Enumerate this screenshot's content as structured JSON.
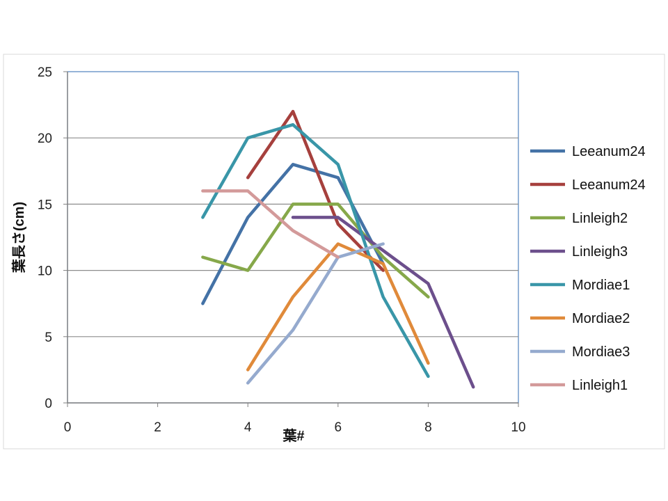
{
  "chart_data": {
    "type": "line",
    "title": "",
    "xlabel": "葉#",
    "ylabel": "葉長さ(cm)",
    "xlim": [
      0,
      10
    ],
    "ylim": [
      0,
      25
    ],
    "xticks": [
      "0",
      "2",
      "4",
      "6",
      "8",
      "10"
    ],
    "yticks": [
      "0",
      "5",
      "10",
      "15",
      "20",
      "25"
    ],
    "grid": "horizontal",
    "legend": "right",
    "series": [
      {
        "name": "Leeanum24",
        "color": "#4472a6",
        "x": [
          3,
          4,
          5,
          6,
          7
        ],
        "y": [
          7.5,
          14,
          18,
          17,
          10.5
        ]
      },
      {
        "name": "Leeanum24",
        "color": "#a6403d",
        "x": [
          4,
          5,
          6,
          7
        ],
        "y": [
          17,
          22,
          13.5,
          10
        ]
      },
      {
        "name": "Linleigh2",
        "color": "#86a84a",
        "x": [
          3,
          4,
          5,
          6,
          7,
          8
        ],
        "y": [
          11,
          10,
          15,
          15,
          11,
          8
        ]
      },
      {
        "name": "Linleigh3",
        "color": "#6c4f8c",
        "x": [
          5,
          6,
          7,
          8,
          9
        ],
        "y": [
          14,
          14,
          11.5,
          9,
          1.2
        ]
      },
      {
        "name": "Mordiae1",
        "color": "#3996a8",
        "x": [
          3,
          4,
          5,
          6,
          7,
          8
        ],
        "y": [
          14,
          20,
          21,
          18,
          8,
          2
        ]
      },
      {
        "name": "Mordiae2",
        "color": "#e08a3a",
        "x": [
          4,
          5,
          6,
          7,
          8
        ],
        "y": [
          2.5,
          8,
          12,
          10.5,
          3
        ]
      },
      {
        "name": "Mordiae3",
        "color": "#95aace",
        "x": [
          4,
          5,
          6,
          7
        ],
        "y": [
          1.5,
          5.5,
          11,
          12
        ]
      },
      {
        "name": "Linleigh1",
        "color": "#d39a9a",
        "x": [
          3,
          4,
          5,
          6
        ],
        "y": [
          16,
          16,
          13,
          11
        ]
      }
    ]
  }
}
